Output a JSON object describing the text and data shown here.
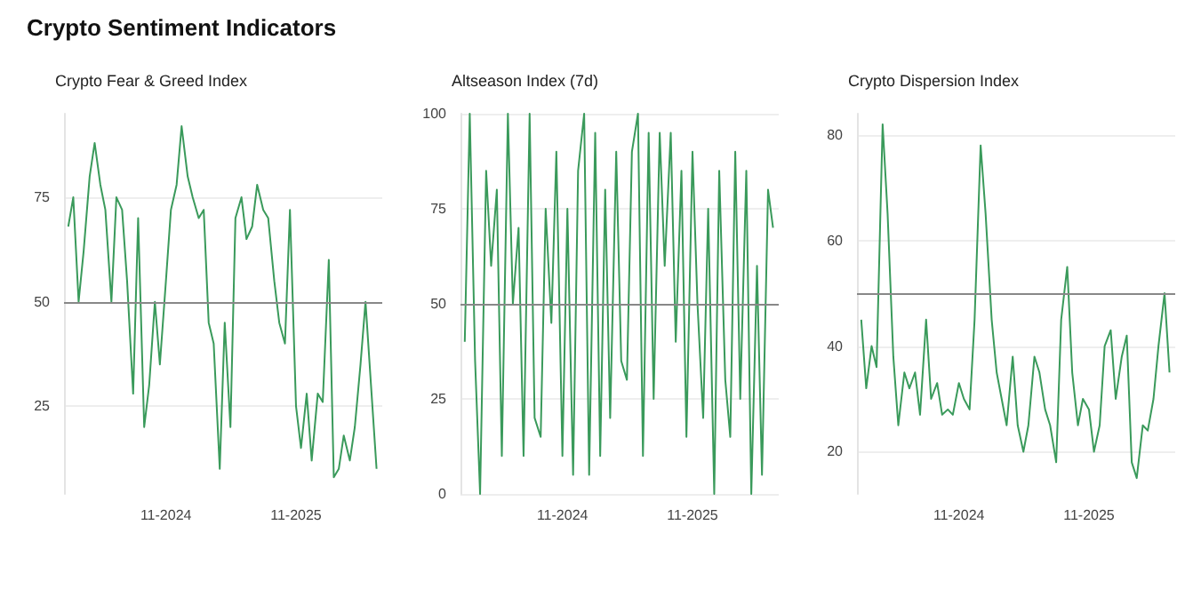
{
  "chart_data": [
    {
      "type": "line",
      "title": "Crypto Sentiment Indicators",
      "subtitle": "Crypto Fear & Greed Index",
      "color": "#3a9a5b",
      "grid": "y",
      "x": [
        "2024-02-01",
        "2024-02-15",
        "2024-03-01",
        "2024-03-15",
        "2024-04-01",
        "2024-04-15",
        "2024-05-01",
        "2024-05-15",
        "2024-06-01",
        "2024-06-15",
        "2024-07-01",
        "2024-07-15",
        "2024-08-01",
        "2024-08-15",
        "2024-09-01",
        "2024-09-15",
        "2024-10-01",
        "2024-10-15",
        "2024-11-01",
        "2024-11-15",
        "2024-12-01",
        "2024-12-15",
        "2025-01-01",
        "2025-01-15",
        "2025-02-01",
        "2025-02-15",
        "2025-03-01",
        "2025-03-15",
        "2025-04-01",
        "2025-04-15",
        "2025-05-01",
        "2025-05-15",
        "2025-06-01",
        "2025-06-15",
        "2025-07-01",
        "2025-07-15",
        "2025-08-01",
        "2025-08-15",
        "2025-09-01",
        "2025-09-15",
        "2025-10-01",
        "2025-10-15",
        "2025-11-01",
        "2025-11-15",
        "2025-12-01",
        "2025-12-15",
        "2026-01-01",
        "2026-01-15",
        "2026-02-01",
        "2026-02-15",
        "2026-03-01",
        "2026-03-15",
        "2026-04-01",
        "2026-04-15",
        "2026-05-01",
        "2026-05-15",
        "2026-06-01",
        "2026-06-15"
      ],
      "values": [
        68,
        75,
        50,
        62,
        80,
        88,
        78,
        72,
        50,
        75,
        72,
        55,
        28,
        70,
        20,
        30,
        50,
        35,
        55,
        72,
        78,
        92,
        80,
        75,
        70,
        72,
        45,
        40,
        10,
        45,
        20,
        70,
        75,
        65,
        68,
        78,
        72,
        70,
        55,
        45,
        40,
        72,
        25,
        15,
        28,
        12,
        28,
        26,
        60,
        8,
        10,
        18,
        12,
        20,
        35,
        50,
        28,
        10
      ],
      "xlim": [
        "2024-01-20",
        "2026-07-01"
      ],
      "xticks": [
        {
          "value": "2024-11-01",
          "label": "11-2024"
        },
        {
          "value": "2025-11-01",
          "label": "11-2025"
        }
      ],
      "ylim": [
        4,
        95
      ],
      "yticks": [
        25,
        50,
        75
      ],
      "ref_lines": [
        {
          "axis": "y",
          "value": 50,
          "color": "#888888"
        }
      ]
    },
    {
      "type": "line",
      "subtitle": "Altseason Index (7d)",
      "color": "#3a9a5b",
      "grid": "y",
      "x": [
        "2024-02-01",
        "2024-02-15",
        "2024-03-01",
        "2024-03-15",
        "2024-04-01",
        "2024-04-15",
        "2024-05-01",
        "2024-05-15",
        "2024-06-01",
        "2024-06-15",
        "2024-07-01",
        "2024-07-15",
        "2024-08-01",
        "2024-08-15",
        "2024-09-01",
        "2024-09-15",
        "2024-10-01",
        "2024-10-15",
        "2024-11-01",
        "2024-11-15",
        "2024-12-01",
        "2024-12-15",
        "2025-01-01",
        "2025-01-15",
        "2025-02-01",
        "2025-02-15",
        "2025-03-01",
        "2025-03-15",
        "2025-04-01",
        "2025-04-15",
        "2025-05-01",
        "2025-05-15",
        "2025-06-01",
        "2025-06-15",
        "2025-07-01",
        "2025-07-15",
        "2025-08-01",
        "2025-08-15",
        "2025-09-01",
        "2025-09-15",
        "2025-10-01",
        "2025-10-15",
        "2025-11-01",
        "2025-11-15",
        "2025-12-01",
        "2025-12-15",
        "2026-01-01",
        "2026-01-15",
        "2026-02-01",
        "2026-02-15",
        "2026-03-01",
        "2026-03-15",
        "2026-04-01",
        "2026-04-15",
        "2026-05-01",
        "2026-05-15",
        "2026-06-01",
        "2026-06-15"
      ],
      "values": [
        40,
        100,
        35,
        0,
        85,
        60,
        80,
        10,
        100,
        50,
        70,
        10,
        100,
        20,
        15,
        75,
        45,
        90,
        10,
        75,
        5,
        85,
        100,
        5,
        95,
        10,
        80,
        20,
        90,
        35,
        30,
        90,
        100,
        10,
        95,
        25,
        95,
        60,
        95,
        40,
        85,
        15,
        90,
        50,
        20,
        75,
        0,
        85,
        30,
        15,
        90,
        25,
        85,
        0,
        60,
        5,
        80,
        70
      ],
      "xlim": [
        "2024-01-20",
        "2026-07-01"
      ],
      "xticks": [
        {
          "value": "2024-11-01",
          "label": "11-2024"
        },
        {
          "value": "2025-11-01",
          "label": "11-2025"
        }
      ],
      "ylim": [
        0,
        100
      ],
      "yticks": [
        0,
        25,
        50,
        75,
        100
      ],
      "ref_lines": [
        {
          "axis": "y",
          "value": 50,
          "color": "#888888"
        }
      ]
    },
    {
      "type": "line",
      "subtitle": "Crypto Dispersion Index",
      "color": "#3a9a5b",
      "grid": "y",
      "x": [
        "2024-02-01",
        "2024-02-15",
        "2024-03-01",
        "2024-03-15",
        "2024-04-01",
        "2024-04-15",
        "2024-05-01",
        "2024-05-15",
        "2024-06-01",
        "2024-06-15",
        "2024-07-01",
        "2024-07-15",
        "2024-08-01",
        "2024-08-15",
        "2024-09-01",
        "2024-09-15",
        "2024-10-01",
        "2024-10-15",
        "2024-11-01",
        "2024-11-15",
        "2024-12-01",
        "2024-12-15",
        "2025-01-01",
        "2025-01-15",
        "2025-02-01",
        "2025-02-15",
        "2025-03-01",
        "2025-03-15",
        "2025-04-01",
        "2025-04-15",
        "2025-05-01",
        "2025-05-15",
        "2025-06-01",
        "2025-06-15",
        "2025-07-01",
        "2025-07-15",
        "2025-08-01",
        "2025-08-15",
        "2025-09-01",
        "2025-09-15",
        "2025-10-01",
        "2025-10-15",
        "2025-11-01",
        "2025-11-15",
        "2025-12-01",
        "2025-12-15",
        "2026-01-01",
        "2026-01-15",
        "2026-02-01",
        "2026-02-15",
        "2026-03-01",
        "2026-03-15",
        "2026-04-01",
        "2026-04-15",
        "2026-05-01",
        "2026-05-15",
        "2026-06-01",
        "2026-06-15"
      ],
      "values": [
        45,
        32,
        40,
        36,
        82,
        65,
        38,
        25,
        35,
        32,
        35,
        27,
        45,
        30,
        33,
        27,
        28,
        27,
        33,
        30,
        28,
        45,
        78,
        65,
        45,
        35,
        30,
        25,
        38,
        25,
        20,
        25,
        38,
        35,
        28,
        25,
        18,
        45,
        55,
        35,
        25,
        30,
        28,
        20,
        25,
        40,
        43,
        30,
        38,
        42,
        18,
        15,
        25,
        24,
        30,
        40,
        50,
        35
      ],
      "xlim": [
        "2024-01-20",
        "2026-07-01"
      ],
      "xticks": [
        {
          "value": "2024-11-01",
          "label": "11-2024"
        },
        {
          "value": "2025-11-01",
          "label": "11-2025"
        }
      ],
      "ylim": [
        12,
        84
      ],
      "yticks": [
        20,
        40,
        60,
        80
      ],
      "ref_lines": [
        {
          "axis": "y",
          "value": 50,
          "color": "#888888"
        }
      ]
    }
  ]
}
